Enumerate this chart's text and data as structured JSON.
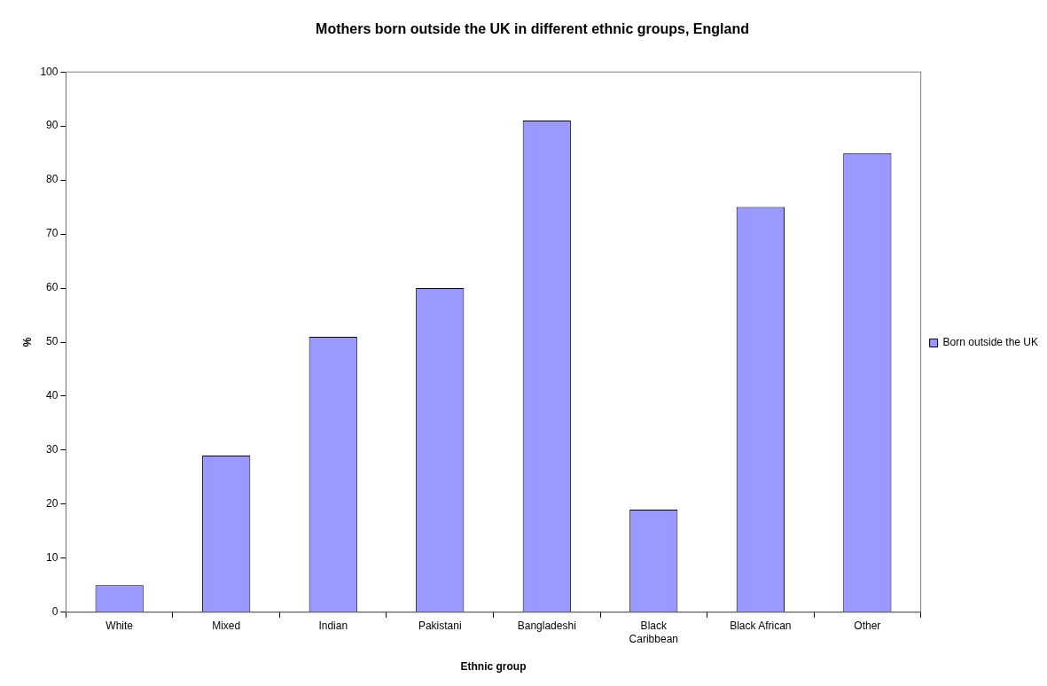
{
  "chart_data": {
    "type": "bar",
    "title": "Mothers born outside the UK in different ethnic groups, England",
    "xlabel": "Ethnic group",
    "ylabel": "%",
    "categories": [
      "White",
      "Mixed",
      "Indian",
      "Pakistani",
      "Bangladeshi",
      "Black Caribbean",
      "Black African",
      "Other"
    ],
    "series": [
      {
        "name": "Born outside the UK",
        "color": "#9999ff",
        "values": [
          5,
          29,
          51,
          60,
          91,
          19,
          75,
          85
        ]
      }
    ],
    "ylim": [
      0,
      100
    ],
    "yticks": [
      0,
      10,
      20,
      30,
      40,
      50,
      60,
      70,
      80,
      90,
      100
    ],
    "grid": false,
    "legend": "right"
  }
}
